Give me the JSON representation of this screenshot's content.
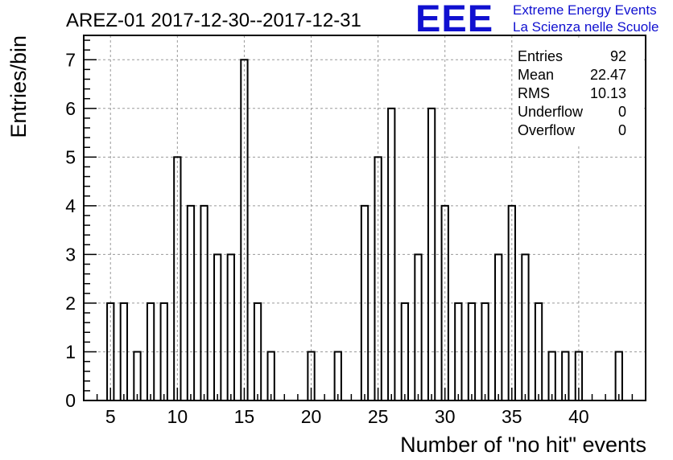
{
  "chart_data": {
    "type": "bar",
    "title": "AREZ-01 2017-12-30--2017-12-31",
    "xlabel": "Number of \"no hit\" events",
    "ylabel": "Entries/bin",
    "xlim": [
      3,
      45
    ],
    "ylim": [
      0,
      7.5
    ],
    "xticks": [
      5,
      10,
      15,
      20,
      25,
      30,
      35,
      40
    ],
    "yticks": [
      0,
      1,
      2,
      3,
      4,
      5,
      6,
      7
    ],
    "grid": true,
    "legend": "none",
    "bar_color": "#000000",
    "bins": [
      {
        "x": 5,
        "value": 2
      },
      {
        "x": 6,
        "value": 2
      },
      {
        "x": 7,
        "value": 1
      },
      {
        "x": 8,
        "value": 2
      },
      {
        "x": 9,
        "value": 2
      },
      {
        "x": 10,
        "value": 5
      },
      {
        "x": 11,
        "value": 4
      },
      {
        "x": 12,
        "value": 4
      },
      {
        "x": 13,
        "value": 3
      },
      {
        "x": 14,
        "value": 3
      },
      {
        "x": 15,
        "value": 7
      },
      {
        "x": 16,
        "value": 2
      },
      {
        "x": 17,
        "value": 1
      },
      {
        "x": 20,
        "value": 1
      },
      {
        "x": 22,
        "value": 1
      },
      {
        "x": 24,
        "value": 4
      },
      {
        "x": 25,
        "value": 5
      },
      {
        "x": 26,
        "value": 6
      },
      {
        "x": 27,
        "value": 2
      },
      {
        "x": 28,
        "value": 3
      },
      {
        "x": 29,
        "value": 6
      },
      {
        "x": 30,
        "value": 4
      },
      {
        "x": 31,
        "value": 2
      },
      {
        "x": 32,
        "value": 2
      },
      {
        "x": 33,
        "value": 2
      },
      {
        "x": 34,
        "value": 3
      },
      {
        "x": 35,
        "value": 4
      },
      {
        "x": 36,
        "value": 3
      },
      {
        "x": 37,
        "value": 2
      },
      {
        "x": 38,
        "value": 1
      },
      {
        "x": 39,
        "value": 1
      },
      {
        "x": 40,
        "value": 1
      },
      {
        "x": 43,
        "value": 1
      }
    ],
    "stats": [
      {
        "label": "Entries",
        "value": "92"
      },
      {
        "label": "Mean",
        "value": "22.47"
      },
      {
        "label": "RMS",
        "value": "10.13"
      },
      {
        "label": "Underflow",
        "value": "0"
      },
      {
        "label": "Overflow",
        "value": "0"
      }
    ]
  },
  "logo": {
    "mark": "EEE",
    "line1": "Extreme Energy Events",
    "line2": "La Scienza nelle Scuole",
    "color": "#1010d0"
  }
}
